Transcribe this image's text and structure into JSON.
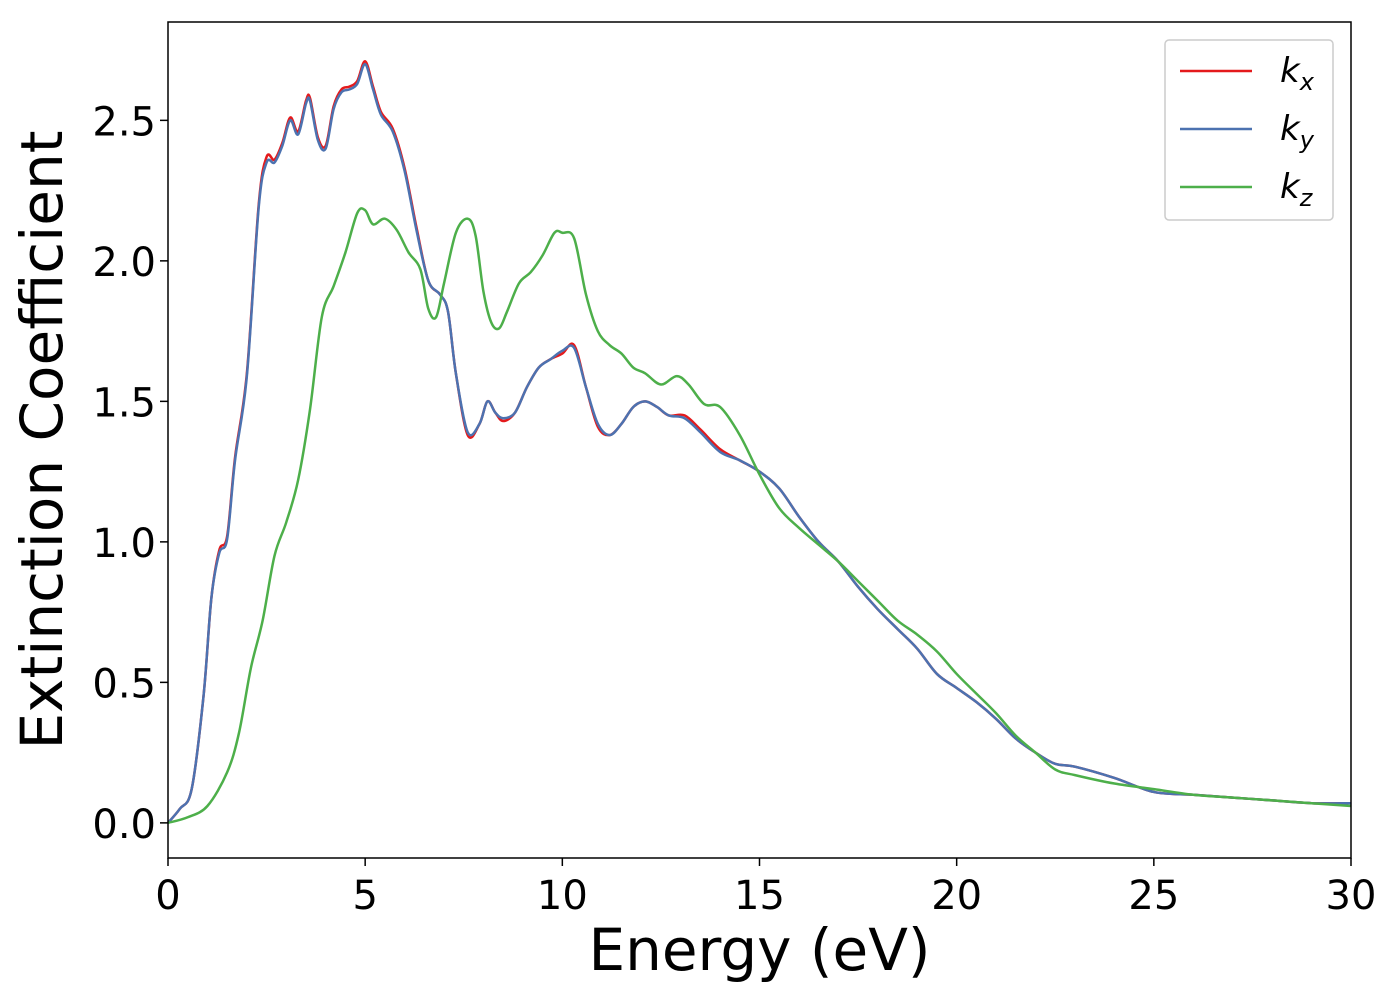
{
  "chart_data": {
    "type": "line",
    "xlabel": "Energy (eV)",
    "ylabel": "Extinction Coefficient",
    "xlim": [
      0,
      30
    ],
    "ylim": [
      -0.125,
      2.85
    ],
    "xticks": [
      0,
      5,
      10,
      15,
      20,
      25,
      30
    ],
    "yticks": [
      0.0,
      0.5,
      1.0,
      1.5,
      2.0,
      2.5
    ],
    "xtick_labels": [
      "0",
      "5",
      "10",
      "15",
      "20",
      "25",
      "30"
    ],
    "ytick_labels": [
      "0.0",
      "0.5",
      "1.0",
      "1.5",
      "2.0",
      "2.5"
    ],
    "grid": false,
    "legend_position": "top-right",
    "series": [
      {
        "name": "k_x",
        "label_base": "k",
        "label_sub": "x",
        "color": "#e41a1c",
        "x": [
          0,
          0.3,
          0.6,
          0.9,
          1.1,
          1.3,
          1.5,
          1.7,
          2.0,
          2.3,
          2.5,
          2.7,
          2.9,
          3.1,
          3.3,
          3.5,
          3.6,
          3.8,
          4.0,
          4.2,
          4.4,
          4.6,
          4.8,
          5.0,
          5.2,
          5.4,
          5.7,
          6.0,
          6.3,
          6.6,
          6.9,
          7.1,
          7.3,
          7.6,
          7.9,
          8.1,
          8.3,
          8.5,
          8.8,
          9.1,
          9.4,
          9.7,
          10.0,
          10.3,
          10.6,
          10.9,
          11.2,
          11.5,
          11.8,
          12.1,
          12.4,
          12.7,
          13.1,
          13.5,
          14.0,
          14.5,
          15.0,
          15.5,
          16.0,
          16.5,
          17.0,
          17.5,
          18.0,
          18.5,
          19.0,
          19.5,
          20.0,
          20.5,
          21.0,
          21.5,
          22.0,
          22.5,
          23.0,
          24.0,
          25.0,
          26.0,
          27.0,
          28.0,
          29.0,
          30.0
        ],
        "y": [
          0.0,
          0.05,
          0.12,
          0.45,
          0.8,
          0.97,
          1.02,
          1.3,
          1.6,
          2.2,
          2.37,
          2.36,
          2.42,
          2.51,
          2.46,
          2.57,
          2.58,
          2.44,
          2.41,
          2.55,
          2.61,
          2.62,
          2.64,
          2.71,
          2.62,
          2.53,
          2.47,
          2.33,
          2.12,
          1.93,
          1.88,
          1.82,
          1.6,
          1.38,
          1.42,
          1.5,
          1.46,
          1.43,
          1.46,
          1.55,
          1.62,
          1.65,
          1.67,
          1.7,
          1.55,
          1.41,
          1.38,
          1.42,
          1.48,
          1.5,
          1.48,
          1.45,
          1.45,
          1.4,
          1.33,
          1.29,
          1.25,
          1.19,
          1.09,
          1.0,
          0.93,
          0.84,
          0.76,
          0.69,
          0.62,
          0.53,
          0.48,
          0.43,
          0.37,
          0.3,
          0.25,
          0.21,
          0.2,
          0.16,
          0.11,
          0.1,
          0.09,
          0.08,
          0.07,
          0.07
        ]
      },
      {
        "name": "k_y",
        "label_base": "k",
        "label_sub": "y",
        "color": "#4c72b0",
        "x": [
          0,
          0.3,
          0.6,
          0.9,
          1.1,
          1.3,
          1.5,
          1.7,
          2.0,
          2.3,
          2.5,
          2.7,
          2.9,
          3.1,
          3.3,
          3.5,
          3.6,
          3.8,
          4.0,
          4.2,
          4.4,
          4.6,
          4.8,
          5.0,
          5.2,
          5.4,
          5.7,
          6.0,
          6.3,
          6.6,
          6.9,
          7.1,
          7.3,
          7.6,
          7.9,
          8.1,
          8.3,
          8.5,
          8.8,
          9.1,
          9.4,
          9.7,
          10.0,
          10.3,
          10.6,
          10.9,
          11.2,
          11.5,
          11.8,
          12.1,
          12.4,
          12.7,
          13.1,
          13.5,
          14.0,
          14.5,
          15.0,
          15.5,
          16.0,
          16.5,
          17.0,
          17.5,
          18.0,
          18.5,
          19.0,
          19.5,
          20.0,
          20.5,
          21.0,
          21.5,
          22.0,
          22.5,
          23.0,
          24.0,
          25.0,
          26.0,
          27.0,
          28.0,
          29.0,
          30.0
        ],
        "y": [
          0.0,
          0.05,
          0.12,
          0.45,
          0.8,
          0.96,
          1.01,
          1.29,
          1.59,
          2.19,
          2.35,
          2.35,
          2.41,
          2.5,
          2.45,
          2.56,
          2.57,
          2.43,
          2.4,
          2.54,
          2.6,
          2.61,
          2.63,
          2.7,
          2.61,
          2.52,
          2.46,
          2.32,
          2.11,
          1.93,
          1.88,
          1.82,
          1.6,
          1.39,
          1.42,
          1.5,
          1.46,
          1.44,
          1.46,
          1.55,
          1.62,
          1.65,
          1.68,
          1.69,
          1.55,
          1.42,
          1.38,
          1.42,
          1.48,
          1.5,
          1.48,
          1.45,
          1.44,
          1.39,
          1.32,
          1.29,
          1.25,
          1.19,
          1.09,
          1.0,
          0.93,
          0.84,
          0.76,
          0.69,
          0.62,
          0.53,
          0.48,
          0.43,
          0.37,
          0.3,
          0.25,
          0.21,
          0.2,
          0.16,
          0.11,
          0.1,
          0.09,
          0.08,
          0.07,
          0.07
        ]
      },
      {
        "name": "k_z",
        "label_base": "k",
        "label_sub": "z",
        "color": "#4daf4a",
        "x": [
          0,
          0.5,
          1.0,
          1.5,
          1.8,
          2.1,
          2.4,
          2.7,
          3.0,
          3.3,
          3.6,
          3.9,
          4.2,
          4.5,
          4.8,
          5.0,
          5.2,
          5.5,
          5.8,
          6.1,
          6.4,
          6.6,
          6.8,
          7.0,
          7.3,
          7.6,
          7.8,
          8.0,
          8.2,
          8.4,
          8.6,
          8.9,
          9.2,
          9.5,
          9.8,
          10.0,
          10.3,
          10.6,
          10.9,
          11.2,
          11.5,
          11.8,
          12.1,
          12.5,
          12.9,
          13.2,
          13.6,
          14.0,
          14.5,
          15.0,
          15.5,
          16.0,
          16.5,
          17.0,
          17.5,
          18.0,
          18.5,
          19.0,
          19.5,
          20.0,
          20.5,
          21.0,
          21.5,
          22.0,
          22.5,
          23.0,
          24.0,
          25.0,
          26.0,
          27.0,
          28.0,
          29.0,
          30.0
        ],
        "y": [
          0.0,
          0.02,
          0.06,
          0.18,
          0.32,
          0.55,
          0.72,
          0.95,
          1.07,
          1.22,
          1.47,
          1.8,
          1.91,
          2.03,
          2.17,
          2.18,
          2.13,
          2.15,
          2.11,
          2.03,
          1.97,
          1.83,
          1.8,
          1.92,
          2.1,
          2.15,
          2.09,
          1.89,
          1.78,
          1.76,
          1.82,
          1.92,
          1.96,
          2.02,
          2.1,
          2.1,
          2.08,
          1.88,
          1.75,
          1.7,
          1.67,
          1.62,
          1.6,
          1.56,
          1.59,
          1.56,
          1.49,
          1.48,
          1.38,
          1.24,
          1.12,
          1.05,
          0.99,
          0.93,
          0.86,
          0.79,
          0.72,
          0.67,
          0.61,
          0.53,
          0.46,
          0.39,
          0.31,
          0.25,
          0.19,
          0.17,
          0.14,
          0.12,
          0.1,
          0.09,
          0.08,
          0.07,
          0.06
        ]
      }
    ]
  }
}
